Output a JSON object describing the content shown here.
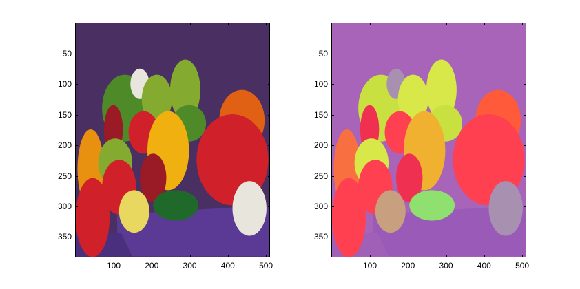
{
  "figure": {
    "panels": [
      {
        "id": "original",
        "palette": {
          "background": "#4a2f62",
          "cloth": "#5b3a95",
          "cloth_dark": "#4a2f7e",
          "green": "#4f8a28",
          "green_light": "#84ab30",
          "green_dark": "#1f6a2a",
          "red": "#d0202a",
          "red_dark": "#9a1a25",
          "orange": "#e06014",
          "orange_left": "#e8900f",
          "yellow": "#f0b010",
          "yellow_pale": "#e8d860",
          "garlic": "#e8e6dc"
        }
      },
      {
        "id": "false-color",
        "palette": {
          "background": "#a864b8",
          "cloth": "#9a5ab8",
          "cloth_dark": "#a060b8",
          "green": "#c8e040",
          "green_light": "#d8e848",
          "green_dark": "#90e070",
          "red": "#ff4050",
          "red_dark": "#f03050",
          "orange": "#ff5a3a",
          "orange_left": "#f87040",
          "yellow": "#f0b030",
          "yellow_pale": "#c8a080",
          "garlic": "#a890b0"
        }
      }
    ],
    "axes": {
      "xlim": [
        0.5,
        512.5
      ],
      "ylim": [
        0.5,
        384.5
      ],
      "y_reversed": true,
      "xticks": [
        "100",
        "200",
        "300",
        "400",
        "500"
      ],
      "yticks": [
        "50",
        "100",
        "150",
        "200",
        "250",
        "300",
        "350"
      ]
    }
  }
}
